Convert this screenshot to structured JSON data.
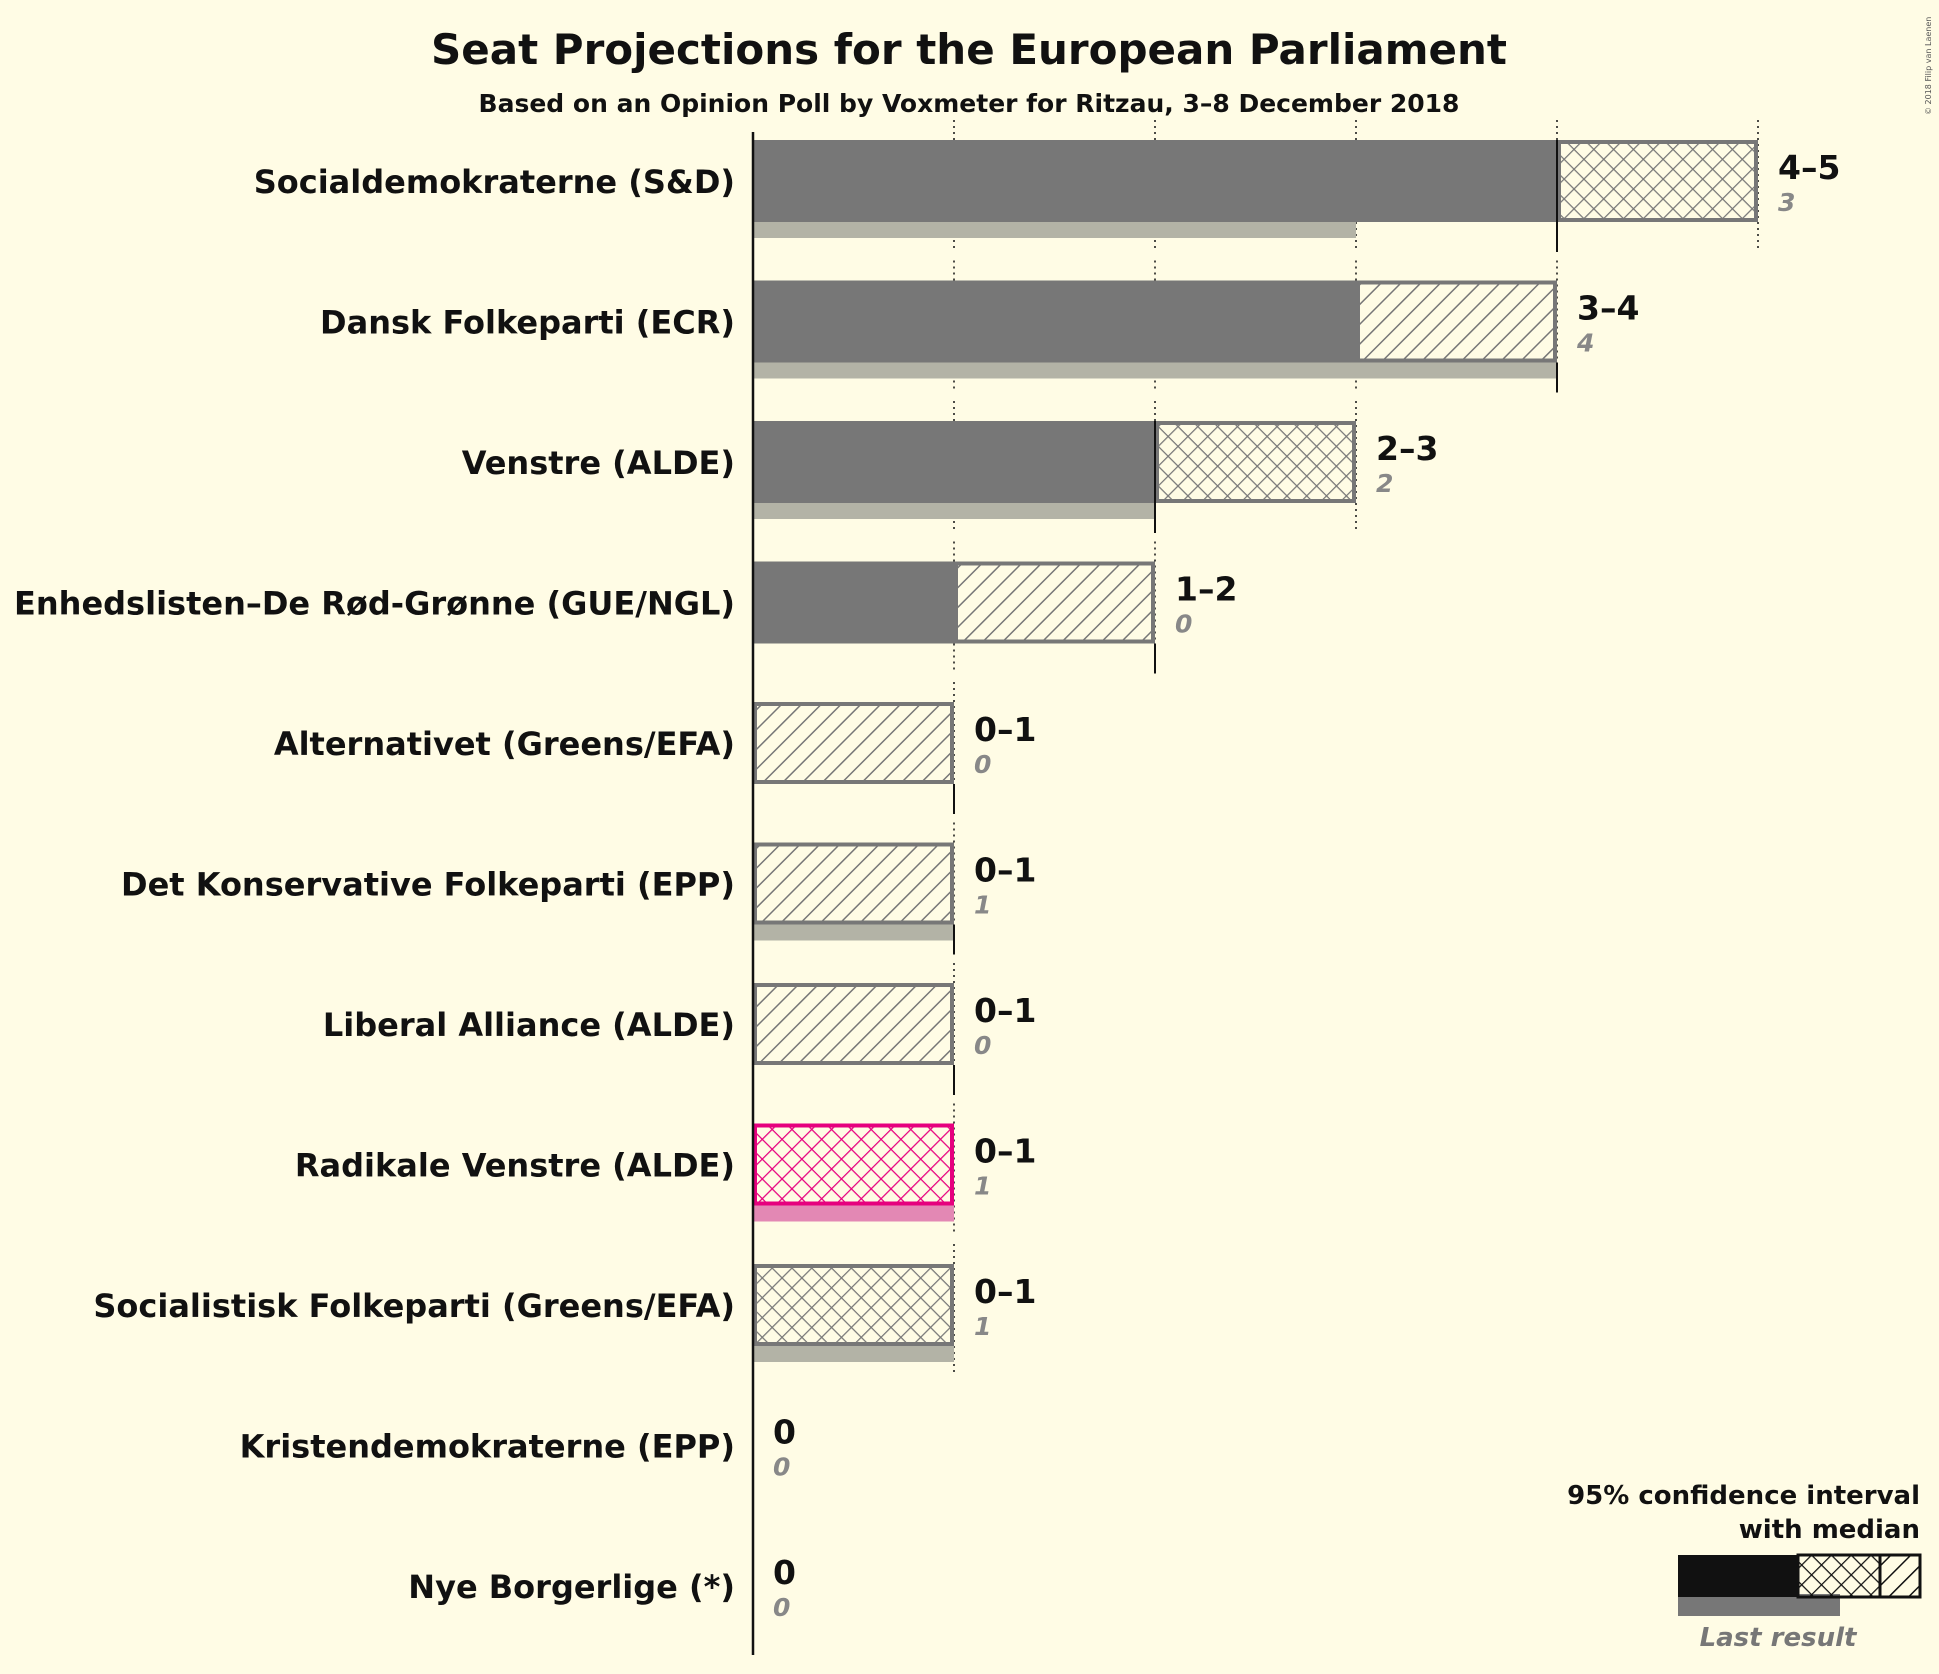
{
  "title": "Seat Projections for the European Parliament",
  "subtitle": "Based on an Opinion Poll by Voxmeter for Ritzau, 3–8 December 2018",
  "copyright": "© 2018 Filip van Laenen",
  "legend": {
    "title_line1": "95% confidence interval",
    "title_line2": "with median",
    "last_result": "Last result"
  },
  "colors": {
    "background": "#fffce5",
    "bar": "#777777",
    "last_result": "#b3b3a6",
    "highlight": "#e6007e",
    "highlight_last": "#e388b4"
  },
  "chart_data": {
    "type": "bar",
    "orientation": "horizontal",
    "x_range": [
      0,
      5
    ],
    "categories": [
      "Socialdemokraterne (S&D)",
      "Dansk Folkeparti (ECR)",
      "Venstre (ALDE)",
      "Enhedslisten–De Rød-Grønne (GUE/NGL)",
      "Alternativet (Greens/EFA)",
      "Det Konservative Folkeparti (EPP)",
      "Liberal Alliance (ALDE)",
      "Radikale Venstre (ALDE)",
      "Socialistisk Folkeparti (Greens/EFA)",
      "Kristendemokraterne (EPP)",
      "Nye Borgerlige (*)"
    ],
    "parties": [
      {
        "name": "Socialdemokraterne (S&D)",
        "low": 4,
        "median": 4,
        "high": 5,
        "last": 3,
        "range_label": "4–5",
        "last_label": "3",
        "highlight": false
      },
      {
        "name": "Dansk Folkeparti (ECR)",
        "low": 3,
        "median": 4,
        "high": 4,
        "last": 4,
        "range_label": "3–4",
        "last_label": "4",
        "highlight": false
      },
      {
        "name": "Venstre (ALDE)",
        "low": 2,
        "median": 2,
        "high": 3,
        "last": 2,
        "range_label": "2–3",
        "last_label": "2",
        "highlight": false
      },
      {
        "name": "Enhedslisten–De Rød-Grønne (GUE/NGL)",
        "low": 1,
        "median": 2,
        "high": 2,
        "last": 0,
        "range_label": "1–2",
        "last_label": "0",
        "highlight": false
      },
      {
        "name": "Alternativet (Greens/EFA)",
        "low": 0,
        "median": 1,
        "high": 1,
        "last": 0,
        "range_label": "0–1",
        "last_label": "0",
        "highlight": false
      },
      {
        "name": "Det Konservative Folkeparti (EPP)",
        "low": 0,
        "median": 1,
        "high": 1,
        "last": 1,
        "range_label": "0–1",
        "last_label": "1",
        "highlight": false
      },
      {
        "name": "Liberal Alliance (ALDE)",
        "low": 0,
        "median": 1,
        "high": 1,
        "last": 0,
        "range_label": "0–1",
        "last_label": "0",
        "highlight": false
      },
      {
        "name": "Radikale Venstre (ALDE)",
        "low": 0,
        "median": 0,
        "high": 1,
        "last": 1,
        "range_label": "0–1",
        "last_label": "1",
        "highlight": true
      },
      {
        "name": "Socialistisk Folkeparti (Greens/EFA)",
        "low": 0,
        "median": 0,
        "high": 1,
        "last": 1,
        "range_label": "0–1",
        "last_label": "1",
        "highlight": false
      },
      {
        "name": "Kristendemokraterne (EPP)",
        "low": 0,
        "median": 0,
        "high": 0,
        "last": 0,
        "range_label": "0",
        "last_label": "0",
        "highlight": false
      },
      {
        "name": "Nye Borgerlige (*)",
        "low": 0,
        "median": 0,
        "high": 0,
        "last": 0,
        "range_label": "0",
        "last_label": "0",
        "highlight": false
      }
    ]
  }
}
